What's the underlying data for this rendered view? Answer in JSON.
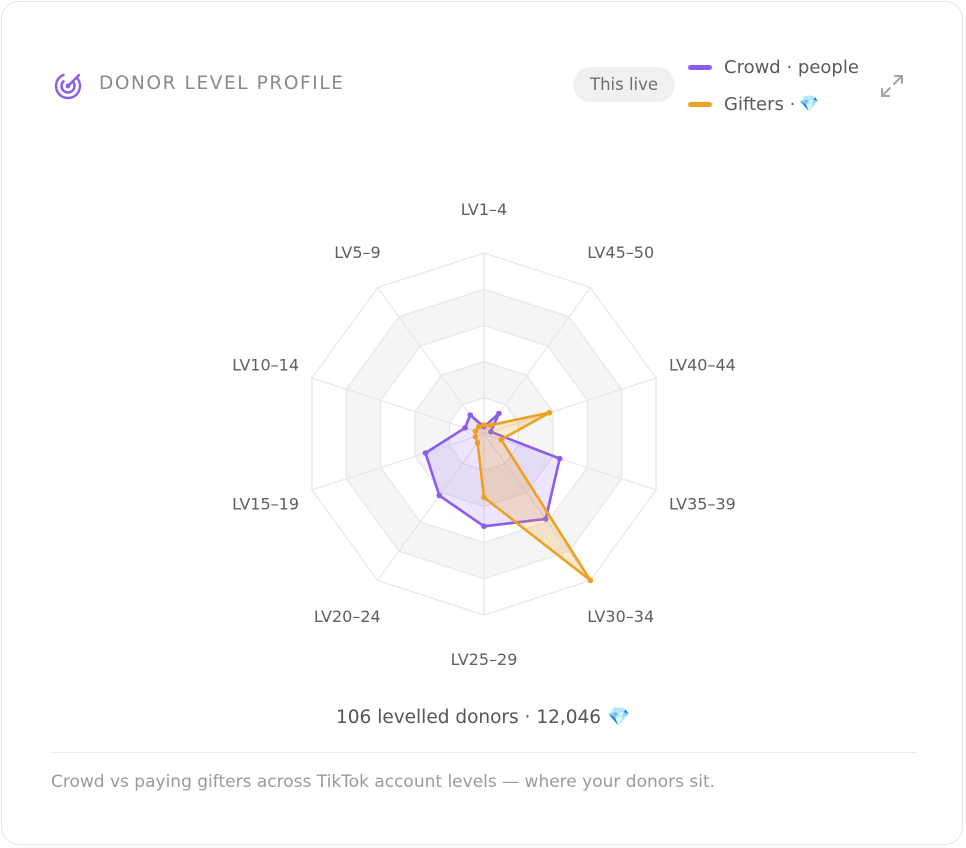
{
  "header": {
    "title": "DONOR LEVEL PROFILE",
    "scope_pill": "This live",
    "icon": "radar-icon",
    "expand_icon": "expand-icon"
  },
  "legend": [
    {
      "label": "Crowd · people",
      "color": "#8a5cf0",
      "gem": ""
    },
    {
      "label": "Gifters · ",
      "color": "#f0a020",
      "gem": "💎"
    }
  ],
  "summary": {
    "text": "106 levelled donors · 12,046",
    "gem": "💎"
  },
  "footnote": "Crowd vs paying gifters across TikTok account levels — where your donors sit.",
  "colors": {
    "crowd": "#8a5cf0",
    "gifters": "#f0a020",
    "grid": "#e6e6e6",
    "band": "#f5f5f5"
  },
  "chart_data": {
    "type": "radar",
    "categories": [
      "LV1–4",
      "LV45–50",
      "LV40–44",
      "LV35–39",
      "LV30–34",
      "LV25–29",
      "LV20–24",
      "LV15–19",
      "LV10–14",
      "LV5–9"
    ],
    "max": 1,
    "grid_levels": 5,
    "series": [
      {
        "name": "Crowd · people",
        "values": [
          0.04,
          0.14,
          0.04,
          0.44,
          0.58,
          0.51,
          0.42,
          0.34,
          0.11,
          0.13
        ]
      },
      {
        "name": "Gifters · 💎",
        "values": [
          0.05,
          0.06,
          0.38,
          0.1,
          1.0,
          0.35,
          0.06,
          0.05,
          0.05,
          0.05
        ]
      }
    ]
  }
}
